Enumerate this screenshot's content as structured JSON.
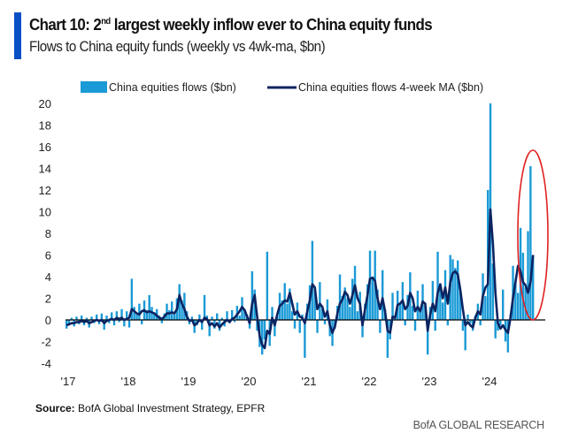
{
  "header": {
    "title_prefix": "Chart 10: 2",
    "title_sup": "nd",
    "title_rest": " largest weekly inflow ever to China equity funds",
    "subtitle": "Flows to China equity funds (weekly vs 4wk-ma, $bn)"
  },
  "footer": {
    "source_label": "Source:",
    "source_text": " BofA Global Investment Strategy, EPFR",
    "brand": "BofA GLOBAL RESEARCH"
  },
  "colors": {
    "accent": "#0b4fc4",
    "flows": "#1a9ad6",
    "ma": "#0c2461",
    "annotation": "#e02020",
    "zero_line": "#000000"
  },
  "chart_data": {
    "type": "bar+line",
    "title": "Chart 10: 2nd largest weekly inflow ever to China equity funds",
    "subtitle": "Flows to China equity funds (weekly vs 4wk-ma, $bn)",
    "legend": [
      "China equities flows ($bn)",
      "China equities flows 4-week MA ($bn)"
    ],
    "legend_position": "top",
    "ylim": [
      -4,
      20
    ],
    "yticks": [
      "20",
      "18",
      "16",
      "14",
      "12",
      "10",
      "8",
      "6",
      "4",
      "2",
      "0",
      "-2",
      "-4"
    ],
    "xticks": [
      "'17",
      "'18",
      "'19",
      "'20",
      "'21",
      "'22",
      "'23",
      "'24"
    ],
    "grid": false,
    "annotation": "red ellipse around latest 2024 inflows",
    "years": [
      {
        "year": 2017,
        "flows": [
          -0.8,
          -0.5,
          0.2,
          -0.6,
          0.3,
          -0.4,
          0.4,
          -0.5,
          0.2,
          -0.7,
          0.3,
          -0.3,
          0.5,
          -0.4,
          0.6,
          -0.9,
          0.4,
          -0.3,
          0.7,
          -0.5,
          0.8,
          -0.2,
          1.0,
          -0.6
        ],
        "ma": [
          -0.5,
          -0.4,
          -0.3,
          -0.3,
          -0.2,
          -0.2,
          -0.1,
          -0.2,
          -0.1,
          -0.3,
          -0.2,
          -0.1,
          0,
          -0.1,
          0,
          -0.3,
          -0.1,
          0,
          0.1,
          0,
          0.2,
          0.1,
          0.2,
          0
        ]
      },
      {
        "year": 2018,
        "flows": [
          0.8,
          -0.7,
          3.8,
          1.2,
          0.5,
          1.5,
          -0.4,
          1.8,
          0.9,
          2.3,
          1.2,
          0.7,
          1.0,
          0.4,
          -0.3,
          0.6,
          1.5,
          0.9,
          1.7,
          0.5,
          2.0,
          3.3,
          1.8,
          2.5
        ],
        "ma": [
          0.1,
          0.2,
          1.0,
          0.8,
          0.6,
          0.5,
          0.8,
          0.9,
          0.7,
          0.8,
          0.7,
          0.6,
          0.4,
          0.2,
          0.1,
          0.3,
          0.6,
          0.6,
          0.7,
          0.6,
          1.0,
          2.3,
          1.5,
          1.0
        ]
      },
      {
        "year": 2019,
        "flows": [
          0.8,
          -0.4,
          0.3,
          -1.2,
          -0.5,
          0.5,
          -0.9,
          2.3,
          0.4,
          -1.5,
          0.3,
          -0.8,
          0.6,
          -1.0,
          0.2,
          -0.6,
          0.8,
          -0.3,
          0.9,
          -0.2,
          1.3,
          0.4,
          2.1,
          1.0
        ],
        "ma": [
          0.3,
          -0.1,
          0,
          -0.5,
          -0.3,
          0,
          -0.2,
          0.2,
          0.1,
          -0.5,
          -0.3,
          -0.6,
          -0.3,
          -0.7,
          -0.4,
          -0.2,
          0,
          -0.2,
          0.1,
          0.2,
          0.5,
          0.8,
          1.2,
          0.9
        ]
      },
      {
        "year": 2020,
        "flows": [
          0.5,
          -0.8,
          4.5,
          2.8,
          -1.0,
          -2.5,
          -3.2,
          -1.8,
          6.3,
          -2.4,
          1.2,
          -1.5,
          0.3,
          2.5,
          1.8,
          3.4,
          1.5,
          2.9,
          0.8,
          -0.8,
          1.6,
          -1.2,
          0.5,
          -3.5
        ],
        "ma": [
          0.3,
          -0.3,
          1.5,
          2.3,
          0.3,
          -1.5,
          -2.3,
          -2.6,
          -1.0,
          -1.3,
          0.2,
          -0.5,
          0.5,
          1.3,
          1.5,
          1.8,
          1.7,
          2.5,
          1.5,
          0.5,
          0.8,
          0.3,
          0.2,
          -0.3
        ]
      },
      {
        "year": 2021,
        "flows": [
          1.5,
          3.2,
          7.3,
          2.8,
          -1.2,
          3.5,
          1.0,
          -0.4,
          1.9,
          -1.5,
          -2.4,
          -0.8,
          1.3,
          4.2,
          2.2,
          3.0,
          2.0,
          1.2,
          3.8,
          5.0,
          0.8,
          2.6,
          -1.6,
          1.5
        ],
        "ma": [
          0.8,
          1.8,
          3.3,
          3.0,
          1.0,
          1.5,
          1.2,
          0.3,
          0.8,
          -0.5,
          -1.2,
          -0.6,
          0.6,
          1.5,
          1.9,
          2.6,
          2.3,
          1.5,
          2.3,
          3.2,
          2.0,
          1.5,
          -0.5,
          1.0
        ]
      },
      {
        "year": 2022,
        "flows": [
          3.3,
          6.4,
          4.0,
          6.4,
          2.8,
          -1.2,
          4.6,
          1.0,
          -3.5,
          -1.8,
          2.5,
          0.4,
          2.7,
          1.5,
          3.5,
          -0.5,
          2.3,
          4.4,
          1.3,
          -1.0,
          2.7,
          0.8,
          3.3,
          1.3
        ],
        "ma": [
          2.3,
          3.8,
          3.9,
          3.6,
          2.0,
          1.0,
          2.0,
          0.8,
          -1.0,
          -1.2,
          0.3,
          0.2,
          1.4,
          1.5,
          1.8,
          1.0,
          1.3,
          2.5,
          2.0,
          0.8,
          1.2,
          0.8,
          1.7,
          1.5
        ]
      },
      {
        "year": 2023,
        "flows": [
          -3.2,
          1.2,
          3.6,
          -1.0,
          6.3,
          3.0,
          1.6,
          4.6,
          -0.5,
          6.0,
          5.6,
          4.8,
          5.5,
          2.8,
          -1.0,
          -2.8,
          0.5,
          -0.3,
          -1.0,
          0.4,
          1.5,
          -0.5,
          4.3,
          2.2
        ],
        "ma": [
          -1.0,
          0.5,
          1.5,
          0.8,
          2.5,
          3.3,
          2.0,
          3.0,
          1.5,
          3.5,
          4.3,
          4.5,
          4.2,
          2.8,
          1.0,
          -0.5,
          -0.2,
          -0.5,
          -0.7,
          0.2,
          0.8,
          0.5,
          2.2,
          3.0
        ]
      },
      {
        "year": 2024,
        "flows": [
          12.0,
          20.0,
          5.2,
          -1.7,
          -1.0,
          -0.5,
          2.8,
          -2.0,
          -3.0,
          0.5,
          5.0,
          3.5,
          2.5,
          8.5,
          6.2,
          3.0,
          8.2,
          14.2,
          6.0
        ],
        "ma": [
          3.3,
          10.2,
          7.0,
          2.5,
          -0.3,
          -0.8,
          -0.5,
          -0.9,
          -1.2,
          0.2,
          2.0,
          3.5,
          5.0,
          4.5,
          3.5,
          3.2,
          2.5,
          3.5,
          6.0
        ]
      }
    ]
  }
}
